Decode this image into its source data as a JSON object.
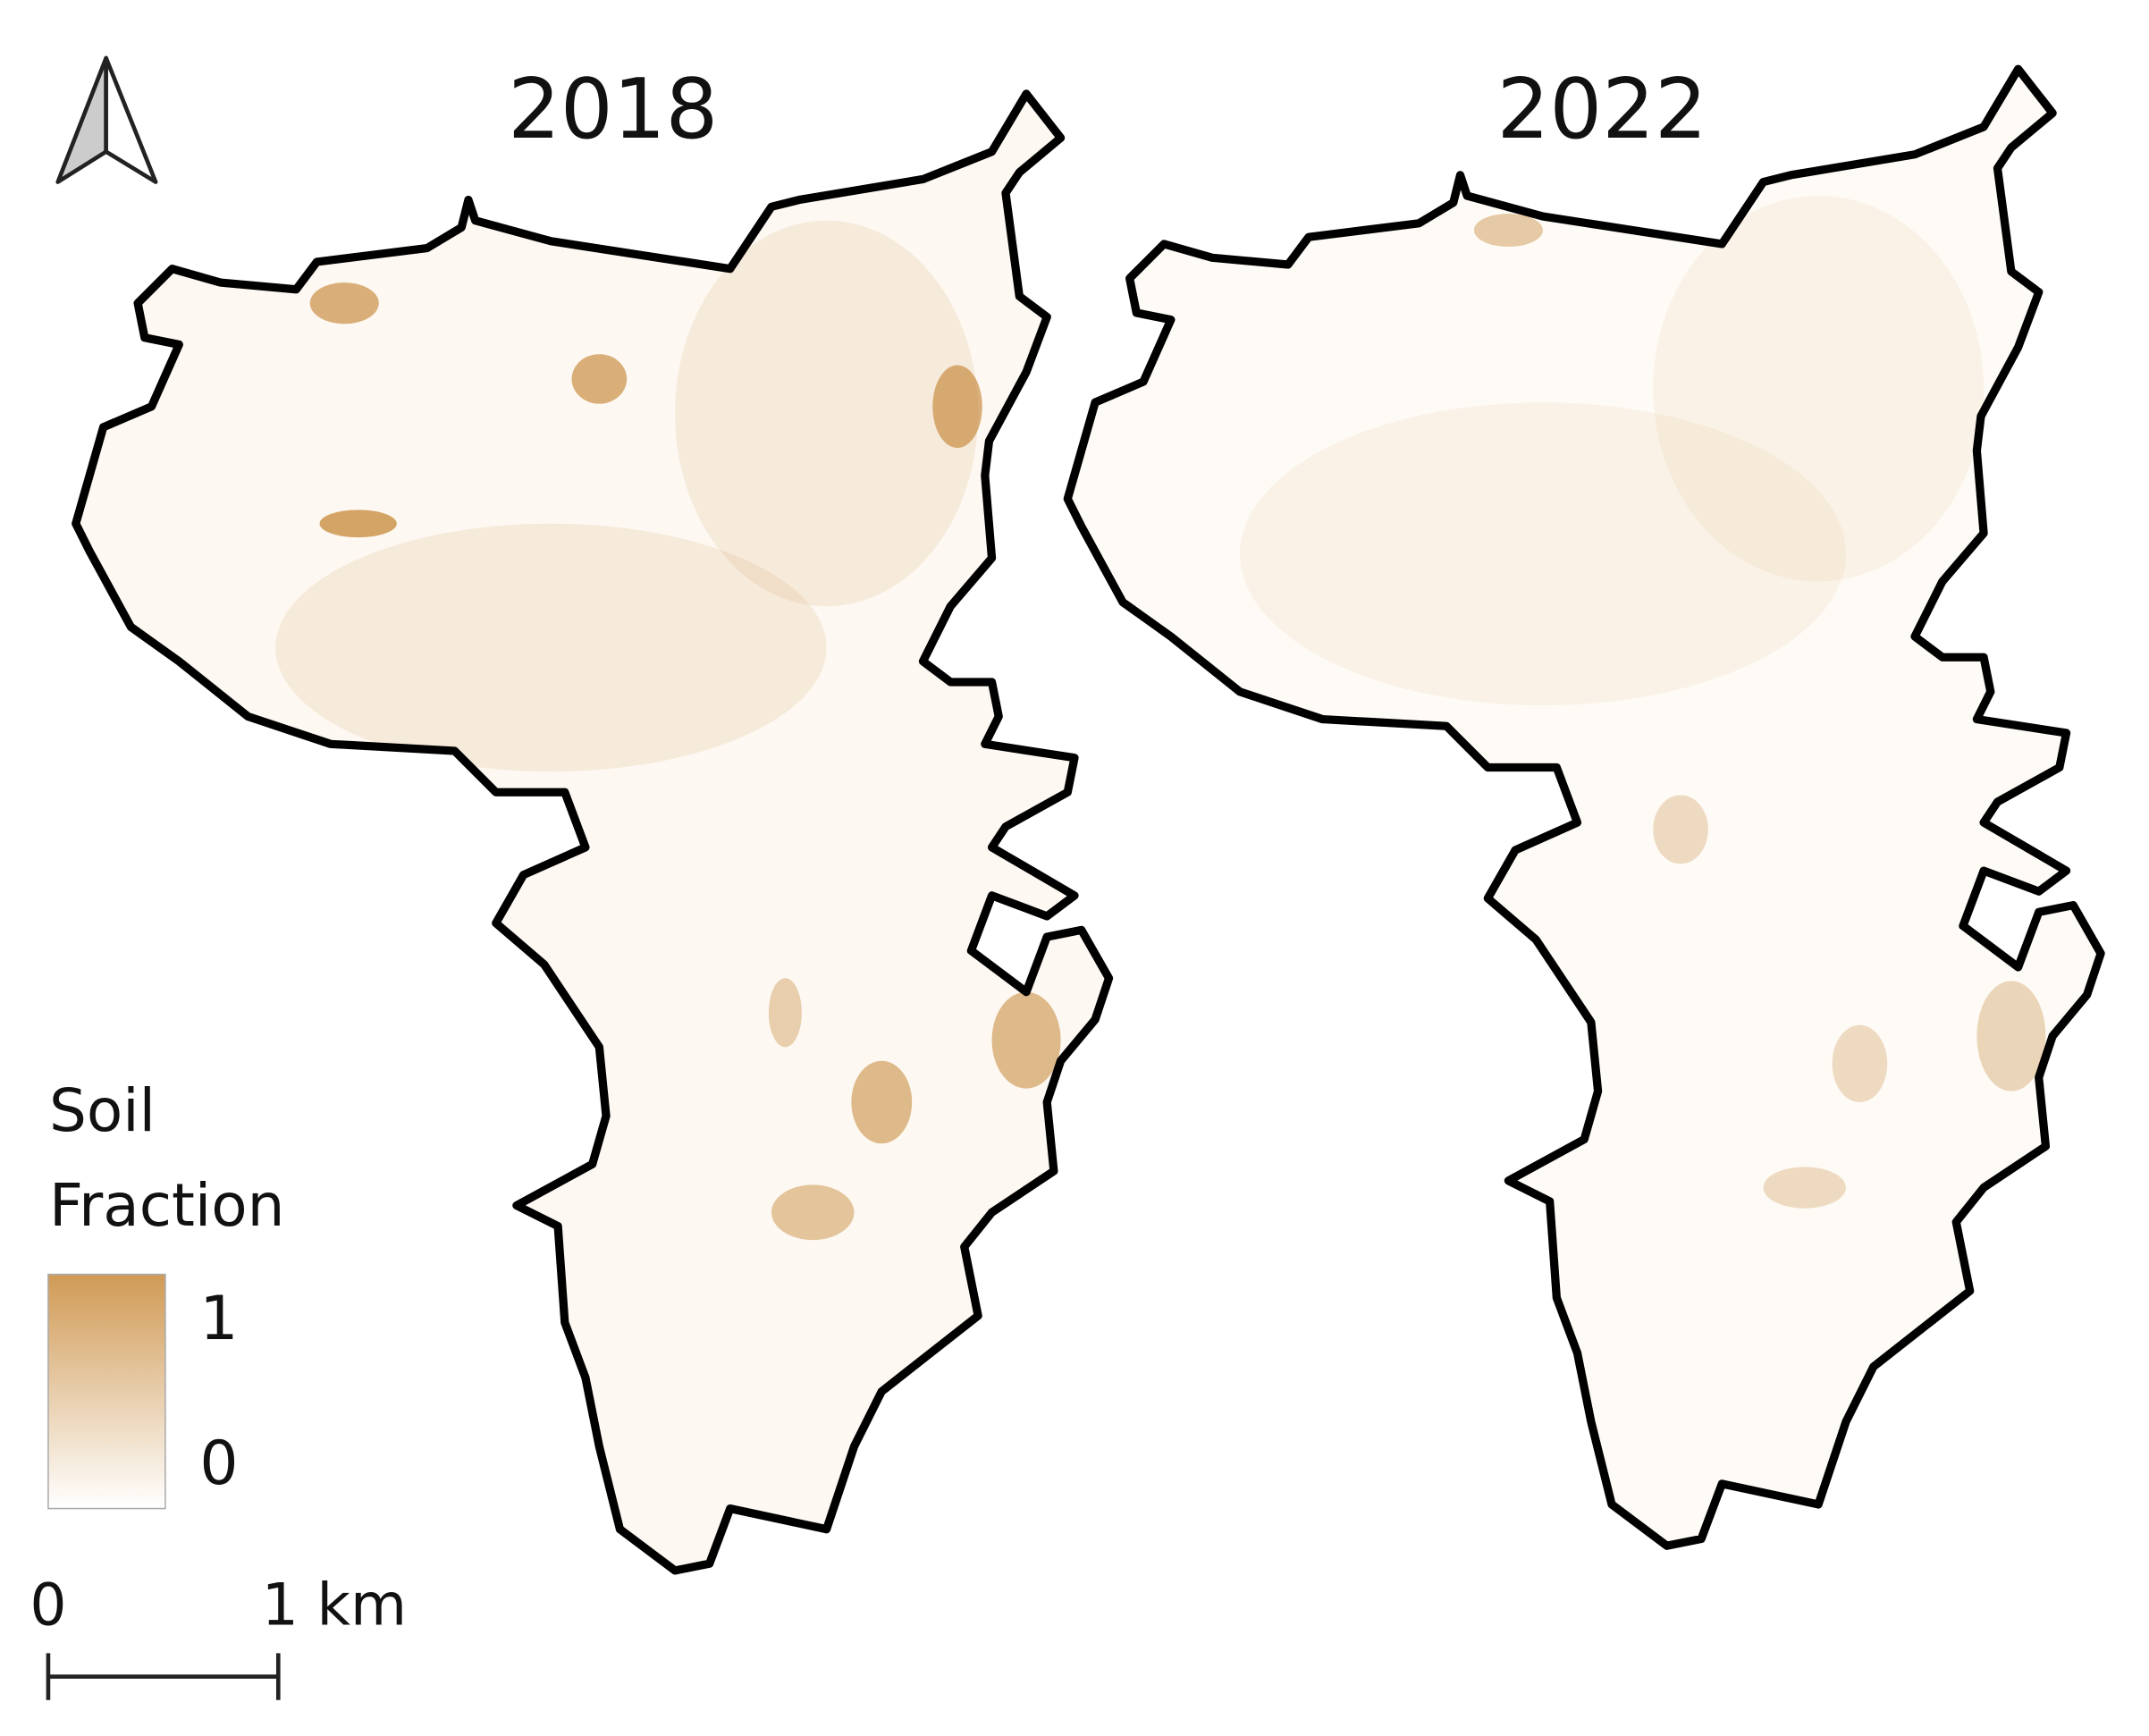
{
  "maps": [
    {
      "title": "2018"
    },
    {
      "title": "2022"
    }
  ],
  "legend": {
    "title": "Soil Fraction",
    "max_label": "1",
    "min_label": "0"
  },
  "scale_bar": {
    "start_label": "0",
    "end_label": "1 km"
  }
}
